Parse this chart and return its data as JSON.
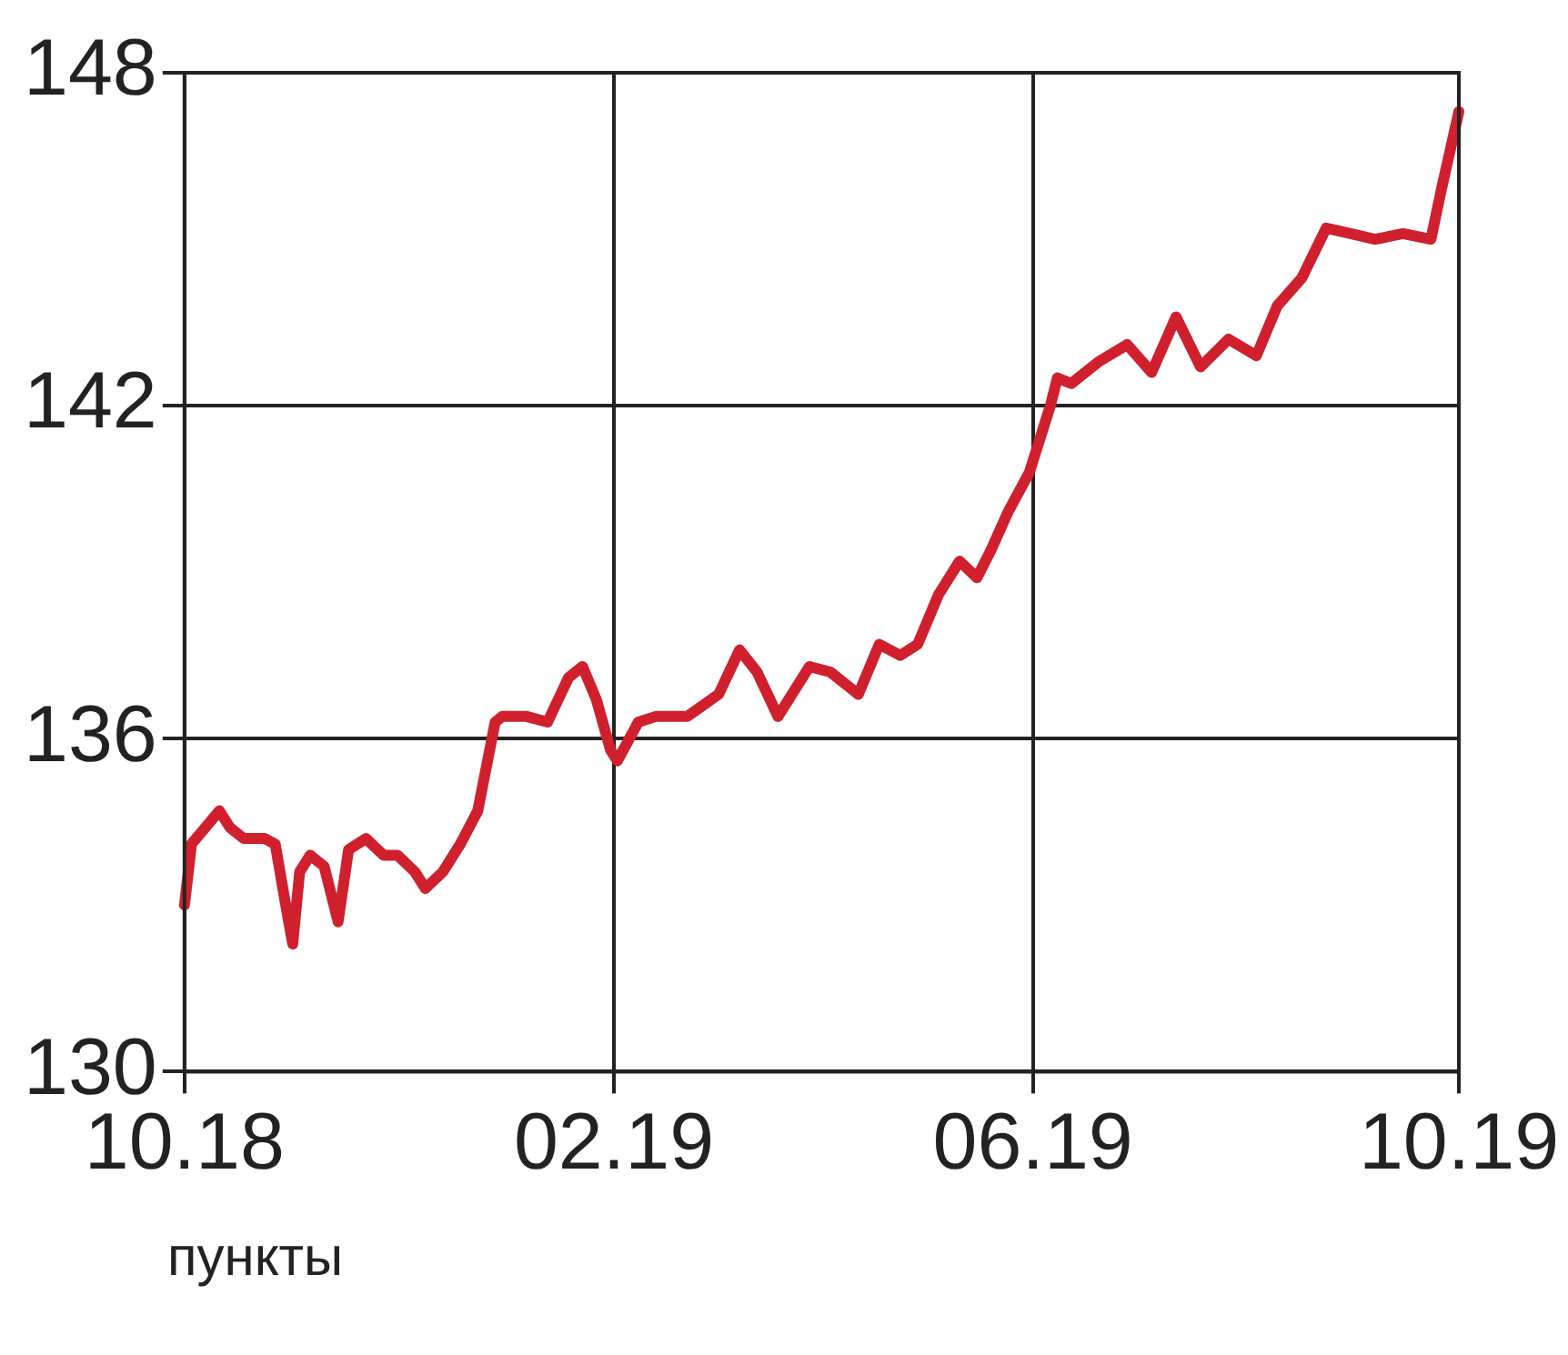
{
  "chart_data": {
    "type": "line",
    "color": "#d0202e",
    "marker": "none",
    "line_style": "solid",
    "grid": true,
    "legend": false,
    "x": [
      "2018-10-01",
      "2018-10-03",
      "2018-10-07",
      "2018-10-11",
      "2018-10-14",
      "2018-10-18",
      "2018-10-24",
      "2018-10-27",
      "2018-10-30",
      "2018-11-01",
      "2018-11-03",
      "2018-11-06",
      "2018-11-10",
      "2018-11-14",
      "2018-11-17",
      "2018-11-22",
      "2018-11-27",
      "2018-12-01",
      "2018-12-06",
      "2018-12-09",
      "2018-12-14",
      "2018-12-19",
      "2018-12-24",
      "2018-12-29",
      "2018-12-31",
      "2019-01-07",
      "2019-01-13",
      "2019-01-19",
      "2019-01-23",
      "2019-01-27",
      "2019-01-31",
      "2019-02-02",
      "2019-02-08",
      "2019-02-13",
      "2019-02-22",
      "2019-03-03",
      "2019-03-09",
      "2019-03-14",
      "2019-03-20",
      "2019-03-29",
      "2019-04-04",
      "2019-04-12",
      "2019-04-18",
      "2019-04-24",
      "2019-04-29",
      "2019-05-05",
      "2019-05-11",
      "2019-05-16",
      "2019-05-20",
      "2019-05-25",
      "2019-05-31",
      "2019-06-06",
      "2019-06-08",
      "2019-06-12",
      "2019-06-20",
      "2019-06-28",
      "2019-07-05",
      "2019-07-12",
      "2019-07-19",
      "2019-07-27",
      "2019-08-04",
      "2019-08-10",
      "2019-08-17",
      "2019-08-24",
      "2019-08-31",
      "2019-09-07",
      "2019-09-15",
      "2019-09-23",
      "2019-09-26",
      "2019-10-01"
    ],
    "values": [
      133.0,
      134.1,
      134.4,
      134.7,
      134.4,
      134.2,
      134.2,
      134.1,
      133.0,
      132.3,
      133.6,
      133.9,
      133.7,
      132.7,
      134.0,
      134.2,
      133.9,
      133.9,
      133.6,
      133.3,
      133.6,
      134.1,
      134.7,
      136.3,
      136.4,
      136.4,
      136.3,
      137.1,
      137.3,
      136.7,
      135.8,
      135.6,
      136.3,
      136.4,
      136.4,
      136.8,
      137.6,
      137.2,
      136.4,
      137.3,
      137.2,
      136.8,
      137.7,
      137.5,
      137.7,
      138.6,
      139.2,
      138.9,
      139.4,
      140.1,
      140.8,
      142.0,
      142.5,
      142.4,
      142.8,
      143.1,
      142.6,
      143.6,
      142.7,
      143.2,
      142.9,
      143.8,
      144.3,
      145.2,
      145.1,
      145.0,
      145.1,
      145.0,
      145.9,
      147.3
    ],
    "xlim": [
      "2018-10-01",
      "2019-10-01"
    ],
    "xticks": [
      {
        "value": "2018-10-01",
        "label": "10.18"
      },
      {
        "value": "2019-02-01",
        "label": "02.19"
      },
      {
        "value": "2019-06-01",
        "label": "06.19"
      },
      {
        "value": "2019-10-01",
        "label": "10.19"
      }
    ],
    "ylim": [
      130,
      148
    ],
    "yticks": [
      130,
      136,
      142,
      148
    ],
    "annotations": [
      "пункты"
    ]
  }
}
